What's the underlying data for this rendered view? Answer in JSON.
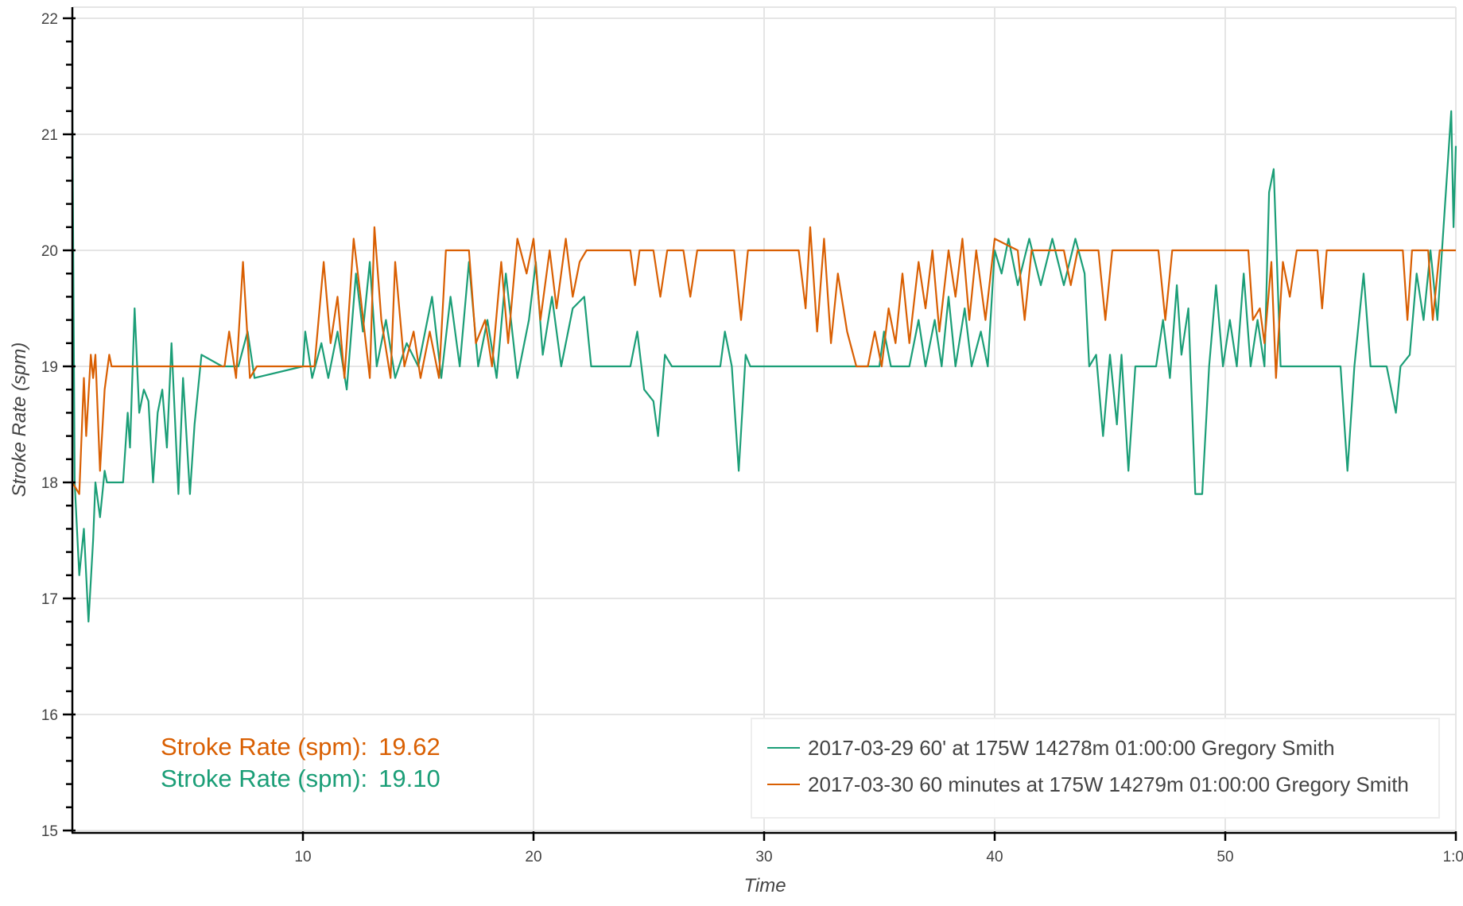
{
  "chart_data": {
    "type": "line",
    "title": "",
    "xlabel": "Time",
    "ylabel": "Stroke Rate (spm)",
    "xlim": [
      0,
      60
    ],
    "ylim": [
      15,
      22.1
    ],
    "grid": true,
    "x_ticks": [
      10,
      20,
      30,
      40,
      50,
      60
    ],
    "x_tick_labels": [
      "10",
      "20",
      "30",
      "40",
      "50",
      "1:0"
    ],
    "y_ticks": [
      15,
      16,
      17,
      18,
      19,
      20,
      21,
      22
    ],
    "y_tick_labels": [
      "15",
      "16",
      "17",
      "18",
      "19",
      "20",
      "21",
      "22"
    ],
    "legend_placement": "bottom-right",
    "colors": {
      "green": "#1b9e77",
      "orange": "#d95f02"
    },
    "series": [
      {
        "name": "2017-03-29 60' at 175W 14278m 01:00:00 Gregory Smith",
        "color": "#1b9e77",
        "points": [
          [
            0,
            21.2
          ],
          [
            0.1,
            18.0
          ],
          [
            0.3,
            17.2
          ],
          [
            0.5,
            17.6
          ],
          [
            0.7,
            16.8
          ],
          [
            0.9,
            17.5
          ],
          [
            1.0,
            18.0
          ],
          [
            1.2,
            17.7
          ],
          [
            1.4,
            18.1
          ],
          [
            1.5,
            18.0
          ],
          [
            2.2,
            18.0
          ],
          [
            2.4,
            18.6
          ],
          [
            2.5,
            18.3
          ],
          [
            2.7,
            19.5
          ],
          [
            2.9,
            18.6
          ],
          [
            3.1,
            18.8
          ],
          [
            3.3,
            18.7
          ],
          [
            3.5,
            18.0
          ],
          [
            3.7,
            18.6
          ],
          [
            3.9,
            18.8
          ],
          [
            4.1,
            18.3
          ],
          [
            4.3,
            19.2
          ],
          [
            4.6,
            17.9
          ],
          [
            4.8,
            18.9
          ],
          [
            5.1,
            17.9
          ],
          [
            5.3,
            18.5
          ],
          [
            5.6,
            19.1
          ],
          [
            6.5,
            19.0
          ],
          [
            7.2,
            19.0
          ],
          [
            7.6,
            19.3
          ],
          [
            7.9,
            18.9
          ],
          [
            10.0,
            19.0
          ],
          [
            10.1,
            19.3
          ],
          [
            10.4,
            18.9
          ],
          [
            10.8,
            19.2
          ],
          [
            11.1,
            18.9
          ],
          [
            11.5,
            19.3
          ],
          [
            11.9,
            18.8
          ],
          [
            12.3,
            19.8
          ],
          [
            12.6,
            19.3
          ],
          [
            12.9,
            19.9
          ],
          [
            13.2,
            19.0
          ],
          [
            13.6,
            19.4
          ],
          [
            14.0,
            18.9
          ],
          [
            14.5,
            19.2
          ],
          [
            15.0,
            19.0
          ],
          [
            15.6,
            19.6
          ],
          [
            16.0,
            18.9
          ],
          [
            16.4,
            19.6
          ],
          [
            16.8,
            19.0
          ],
          [
            17.2,
            19.9
          ],
          [
            17.6,
            19.0
          ],
          [
            18.0,
            19.4
          ],
          [
            18.4,
            18.9
          ],
          [
            18.8,
            19.8
          ],
          [
            19.3,
            18.9
          ],
          [
            19.8,
            19.4
          ],
          [
            20.1,
            19.9
          ],
          [
            20.4,
            19.1
          ],
          [
            20.8,
            19.6
          ],
          [
            21.2,
            19.0
          ],
          [
            21.7,
            19.5
          ],
          [
            22.2,
            19.6
          ],
          [
            22.5,
            19.0
          ],
          [
            24.2,
            19.0
          ],
          [
            24.5,
            19.3
          ],
          [
            24.8,
            18.8
          ],
          [
            25.2,
            18.7
          ],
          [
            25.4,
            18.4
          ],
          [
            25.7,
            19.1
          ],
          [
            26.0,
            19.0
          ],
          [
            28.1,
            19.0
          ],
          [
            28.3,
            19.3
          ],
          [
            28.6,
            19.0
          ],
          [
            28.9,
            18.1
          ],
          [
            29.2,
            19.1
          ],
          [
            29.4,
            19.0
          ],
          [
            34.2,
            19.0
          ],
          [
            35.0,
            19.0
          ],
          [
            35.2,
            19.3
          ],
          [
            35.5,
            19.0
          ],
          [
            36.3,
            19.0
          ],
          [
            36.7,
            19.4
          ],
          [
            37.0,
            19.0
          ],
          [
            37.4,
            19.4
          ],
          [
            37.7,
            19.0
          ],
          [
            38.0,
            19.6
          ],
          [
            38.3,
            19.0
          ],
          [
            38.7,
            19.5
          ],
          [
            39.0,
            19.0
          ],
          [
            39.4,
            19.3
          ],
          [
            39.7,
            19.0
          ],
          [
            40.0,
            20.0
          ],
          [
            40.3,
            19.8
          ],
          [
            40.6,
            20.1
          ],
          [
            41.0,
            19.7
          ],
          [
            41.5,
            20.1
          ],
          [
            42.0,
            19.7
          ],
          [
            42.5,
            20.1
          ],
          [
            43.0,
            19.7
          ],
          [
            43.5,
            20.1
          ],
          [
            43.9,
            19.8
          ],
          [
            44.1,
            19.0
          ],
          [
            44.4,
            19.1
          ],
          [
            44.7,
            18.4
          ],
          [
            45.0,
            19.1
          ],
          [
            45.3,
            18.5
          ],
          [
            45.5,
            19.1
          ],
          [
            45.8,
            18.1
          ],
          [
            46.1,
            19.0
          ],
          [
            47.0,
            19.0
          ],
          [
            47.3,
            19.4
          ],
          [
            47.6,
            18.9
          ],
          [
            47.9,
            19.7
          ],
          [
            48.1,
            19.1
          ],
          [
            48.4,
            19.5
          ],
          [
            48.7,
            17.9
          ],
          [
            49.0,
            17.9
          ],
          [
            49.3,
            19.0
          ],
          [
            49.6,
            19.7
          ],
          [
            49.9,
            19.0
          ],
          [
            50.2,
            19.4
          ],
          [
            50.5,
            19.0
          ],
          [
            50.8,
            19.8
          ],
          [
            51.1,
            19.0
          ],
          [
            51.4,
            19.4
          ],
          [
            51.7,
            19.0
          ],
          [
            51.9,
            20.5
          ],
          [
            52.1,
            20.7
          ],
          [
            52.4,
            19.0
          ],
          [
            53.0,
            19.0
          ],
          [
            55.0,
            19.0
          ],
          [
            55.3,
            18.1
          ],
          [
            55.6,
            19.0
          ],
          [
            56.0,
            19.8
          ],
          [
            56.3,
            19.0
          ],
          [
            57.0,
            19.0
          ],
          [
            57.2,
            18.8
          ],
          [
            57.4,
            18.6
          ],
          [
            57.6,
            19.0
          ],
          [
            58.0,
            19.1
          ],
          [
            58.3,
            19.8
          ],
          [
            58.6,
            19.4
          ],
          [
            58.9,
            20.0
          ],
          [
            59.2,
            19.4
          ],
          [
            59.6,
            20.6
          ],
          [
            59.8,
            21.2
          ],
          [
            59.9,
            20.2
          ],
          [
            60,
            20.9
          ]
        ]
      },
      {
        "name": "2017-03-30 60 minutes at 175W 14279m 01:00:00 Gregory Smith",
        "color": "#d95f02",
        "points": [
          [
            0,
            18.0
          ],
          [
            0.3,
            17.9
          ],
          [
            0.5,
            18.9
          ],
          [
            0.6,
            18.4
          ],
          [
            0.8,
            19.1
          ],
          [
            0.9,
            18.9
          ],
          [
            1.0,
            19.1
          ],
          [
            1.2,
            18.1
          ],
          [
            1.4,
            18.8
          ],
          [
            1.6,
            19.1
          ],
          [
            1.7,
            19.0
          ],
          [
            6.6,
            19.0
          ],
          [
            6.8,
            19.3
          ],
          [
            7.1,
            18.9
          ],
          [
            7.4,
            19.9
          ],
          [
            7.7,
            18.9
          ],
          [
            8.0,
            19.0
          ],
          [
            10.5,
            19.0
          ],
          [
            10.9,
            19.9
          ],
          [
            11.2,
            19.2
          ],
          [
            11.5,
            19.6
          ],
          [
            11.8,
            18.9
          ],
          [
            12.2,
            20.1
          ],
          [
            12.5,
            19.6
          ],
          [
            12.9,
            18.9
          ],
          [
            13.1,
            20.2
          ],
          [
            13.4,
            19.4
          ],
          [
            13.8,
            18.9
          ],
          [
            14.0,
            19.9
          ],
          [
            14.4,
            19.0
          ],
          [
            14.8,
            19.3
          ],
          [
            15.1,
            18.9
          ],
          [
            15.5,
            19.3
          ],
          [
            15.9,
            18.9
          ],
          [
            16.2,
            20.0
          ],
          [
            17.2,
            20.0
          ],
          [
            17.5,
            19.2
          ],
          [
            17.9,
            19.4
          ],
          [
            18.2,
            19.0
          ],
          [
            18.6,
            19.9
          ],
          [
            18.9,
            19.2
          ],
          [
            19.3,
            20.1
          ],
          [
            19.7,
            19.8
          ],
          [
            20.0,
            20.1
          ],
          [
            20.3,
            19.4
          ],
          [
            20.7,
            20.0
          ],
          [
            21.0,
            19.5
          ],
          [
            21.4,
            20.1
          ],
          [
            21.7,
            19.6
          ],
          [
            22.0,
            19.9
          ],
          [
            22.3,
            20.0
          ],
          [
            24.2,
            20.0
          ],
          [
            24.4,
            19.7
          ],
          [
            24.6,
            20.0
          ],
          [
            25.2,
            20.0
          ],
          [
            25.5,
            19.6
          ],
          [
            25.8,
            20.0
          ],
          [
            26.5,
            20.0
          ],
          [
            26.8,
            19.6
          ],
          [
            27.1,
            20.0
          ],
          [
            28.7,
            20.0
          ],
          [
            29.0,
            19.4
          ],
          [
            29.3,
            20.0
          ],
          [
            31.5,
            20.0
          ],
          [
            31.8,
            19.5
          ],
          [
            32.0,
            20.2
          ],
          [
            32.3,
            19.3
          ],
          [
            32.6,
            20.1
          ],
          [
            32.9,
            19.2
          ],
          [
            33.2,
            19.8
          ],
          [
            33.6,
            19.3
          ],
          [
            34.0,
            19.0
          ],
          [
            34.5,
            19.0
          ],
          [
            34.8,
            19.3
          ],
          [
            35.1,
            19.0
          ],
          [
            35.4,
            19.5
          ],
          [
            35.7,
            19.2
          ],
          [
            36.0,
            19.8
          ],
          [
            36.3,
            19.2
          ],
          [
            36.7,
            19.9
          ],
          [
            37.0,
            19.5
          ],
          [
            37.3,
            20.0
          ],
          [
            37.6,
            19.3
          ],
          [
            38.0,
            20.0
          ],
          [
            38.3,
            19.6
          ],
          [
            38.6,
            20.1
          ],
          [
            38.9,
            19.4
          ],
          [
            39.2,
            20.0
          ],
          [
            39.6,
            19.4
          ],
          [
            40.0,
            20.1
          ],
          [
            41.0,
            20.0
          ],
          [
            41.3,
            19.4
          ],
          [
            41.6,
            20.0
          ],
          [
            43.0,
            20.0
          ],
          [
            43.3,
            19.7
          ],
          [
            43.6,
            20.0
          ],
          [
            44.5,
            20.0
          ],
          [
            44.8,
            19.4
          ],
          [
            45.1,
            20.0
          ],
          [
            47.1,
            20.0
          ],
          [
            47.4,
            19.4
          ],
          [
            47.7,
            20.0
          ],
          [
            51.0,
            20.0
          ],
          [
            51.2,
            19.4
          ],
          [
            51.5,
            19.5
          ],
          [
            51.7,
            19.2
          ],
          [
            52.0,
            19.9
          ],
          [
            52.2,
            18.9
          ],
          [
            52.5,
            19.9
          ],
          [
            52.8,
            19.6
          ],
          [
            53.1,
            20.0
          ],
          [
            54.0,
            20.0
          ],
          [
            54.2,
            19.5
          ],
          [
            54.4,
            20.0
          ],
          [
            57.7,
            20.0
          ],
          [
            57.9,
            19.4
          ],
          [
            58.1,
            20.0
          ],
          [
            58.8,
            20.0
          ],
          [
            59.0,
            19.4
          ],
          [
            59.3,
            20.0
          ],
          [
            60,
            20.0
          ]
        ]
      }
    ],
    "annotations": [
      {
        "label": "Stroke Rate (spm):",
        "value": "19.62",
        "color": "#d95f02"
      },
      {
        "label": "Stroke Rate (spm):",
        "value": "19.10",
        "color": "#1b9e77"
      }
    ]
  }
}
